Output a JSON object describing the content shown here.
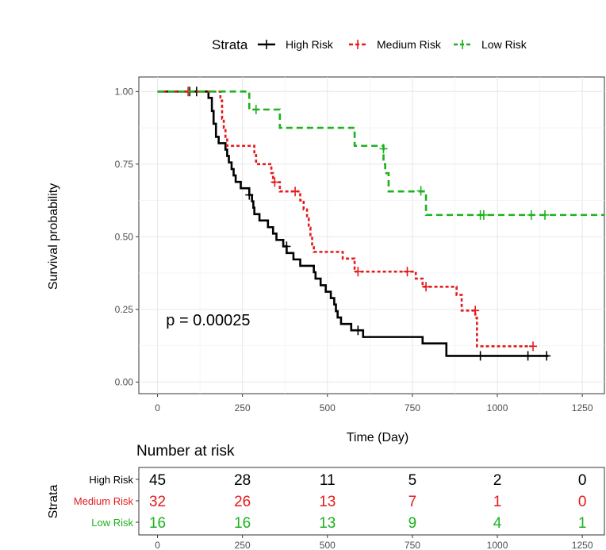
{
  "chart_data": [
    {
      "type": "line",
      "step": true,
      "xlabel": "Time (Day)",
      "ylabel": "Survival probability",
      "xlim": [
        -55,
        1315
      ],
      "ylim": [
        -0.04,
        1.05
      ],
      "x_ticks": [
        0,
        250,
        500,
        750,
        1000,
        1250
      ],
      "y_ticks": [
        0.0,
        0.25,
        0.5,
        0.75,
        1.0
      ],
      "y_tick_labels": [
        "0.00",
        "0.25",
        "0.50",
        "0.75",
        "1.00"
      ],
      "grid": true,
      "legend": {
        "position": "top",
        "title": "Strata",
        "entries": [
          "High Risk",
          "Medium Risk",
          "Low Risk"
        ]
      },
      "annotation": "p = 0.00025",
      "annotation_at": {
        "x": 25,
        "y": 0.195
      },
      "series": [
        {
          "name": "High Risk",
          "color": "#000000",
          "dash": "solid",
          "steps": [
            [
              0,
              1.0
            ],
            [
              150,
              0.978
            ],
            [
              160,
              0.933
            ],
            [
              165,
              0.889
            ],
            [
              172,
              0.844
            ],
            [
              180,
              0.822
            ],
            [
              200,
              0.8
            ],
            [
              205,
              0.778
            ],
            [
              210,
              0.756
            ],
            [
              218,
              0.733
            ],
            [
              224,
              0.711
            ],
            [
              230,
              0.689
            ],
            [
              245,
              0.667
            ],
            [
              270,
              0.644
            ],
            [
              278,
              0.622
            ],
            [
              282,
              0.6
            ],
            [
              285,
              0.578
            ],
            [
              300,
              0.556
            ],
            [
              325,
              0.533
            ],
            [
              340,
              0.511
            ],
            [
              350,
              0.489
            ],
            [
              370,
              0.467
            ],
            [
              380,
              0.444
            ],
            [
              400,
              0.422
            ],
            [
              420,
              0.4
            ],
            [
              460,
              0.378
            ],
            [
              465,
              0.356
            ],
            [
              480,
              0.333
            ],
            [
              495,
              0.311
            ],
            [
              510,
              0.289
            ],
            [
              520,
              0.267
            ],
            [
              525,
              0.244
            ],
            [
              530,
              0.222
            ],
            [
              540,
              0.2
            ],
            [
              560,
              0.2
            ],
            [
              570,
              0.178
            ],
            [
              580,
              0.178
            ],
            [
              605,
              0.155
            ],
            [
              780,
              0.133
            ],
            [
              850,
              0.09
            ],
            [
              1150,
              0.09
            ]
          ],
          "censors": [
            [
              95,
              1.0
            ],
            [
              115,
              1.0
            ],
            [
              270,
              0.644
            ],
            [
              380,
              0.467
            ],
            [
              590,
              0.178
            ],
            [
              950,
              0.09
            ],
            [
              1090,
              0.09
            ],
            [
              1145,
              0.09
            ]
          ]
        },
        {
          "name": "Medium Risk",
          "color": "#e41a1c",
          "dash": "4,3",
          "steps": [
            [
              0,
              1.0
            ],
            [
              185,
              0.969
            ],
            [
              190,
              0.906
            ],
            [
              195,
              0.875
            ],
            [
              200,
              0.844
            ],
            [
              205,
              0.813
            ],
            [
              285,
              0.781
            ],
            [
              290,
              0.75
            ],
            [
              335,
              0.719
            ],
            [
              340,
              0.688
            ],
            [
              360,
              0.656
            ],
            [
              420,
              0.625
            ],
            [
              430,
              0.594
            ],
            [
              440,
              0.563
            ],
            [
              445,
              0.531
            ],
            [
              450,
              0.5
            ],
            [
              455,
              0.469
            ],
            [
              460,
              0.448
            ],
            [
              545,
              0.425
            ],
            [
              580,
              0.38
            ],
            [
              760,
              0.356
            ],
            [
              780,
              0.328
            ],
            [
              880,
              0.3
            ],
            [
              895,
              0.246
            ],
            [
              935,
              0.221
            ],
            [
              940,
              0.123
            ],
            [
              1100,
              0.123
            ]
          ],
          "censors": [
            [
              90,
              1.0
            ],
            [
              345,
              0.688
            ],
            [
              405,
              0.656
            ],
            [
              590,
              0.38
            ],
            [
              735,
              0.38
            ],
            [
              790,
              0.328
            ],
            [
              935,
              0.246
            ],
            [
              1105,
              0.123
            ]
          ]
        },
        {
          "name": "Low Risk",
          "color": "#1db21d",
          "dash": "8,5",
          "steps": [
            [
              0,
              1.0
            ],
            [
              270,
              0.938
            ],
            [
              360,
              0.875
            ],
            [
              580,
              0.813
            ],
            [
              665,
              0.75
            ],
            [
              670,
              0.719
            ],
            [
              680,
              0.656
            ],
            [
              790,
              0.575
            ],
            [
              1315,
              0.575
            ]
          ],
          "censors": [
            [
              290,
              0.938
            ],
            [
              665,
              0.803
            ],
            [
              775,
              0.658
            ],
            [
              950,
              0.575
            ],
            [
              960,
              0.575
            ],
            [
              1100,
              0.575
            ],
            [
              1140,
              0.575
            ]
          ]
        }
      ]
    },
    {
      "type": "table",
      "title": "Number at risk",
      "ylabel": "Strata",
      "x_ticks": [
        0,
        250,
        500,
        750,
        1000,
        1250
      ],
      "rows": [
        {
          "name": "High Risk",
          "color": "#000000",
          "values": [
            45,
            28,
            11,
            5,
            2,
            0
          ]
        },
        {
          "name": "Medium Risk",
          "color": "#e41a1c",
          "values": [
            32,
            26,
            13,
            7,
            1,
            0
          ]
        },
        {
          "name": "Low Risk",
          "color": "#1db21d",
          "values": [
            16,
            16,
            13,
            9,
            4,
            1
          ]
        }
      ]
    }
  ]
}
